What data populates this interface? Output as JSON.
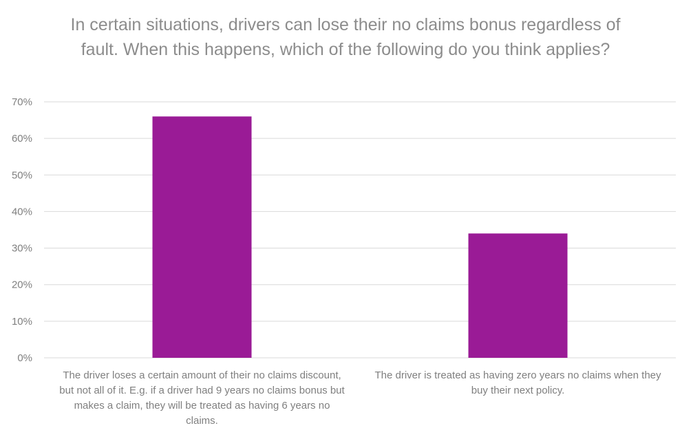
{
  "chart_data": {
    "type": "bar",
    "title": "In certain situations, drivers can lose their no claims bonus regardless of fault. When this happens, which of the following do you think applies?",
    "categories": [
      "The driver loses a certain amount of their no claims discount, but not all of it. E.g. if a driver had 9 years no claims bonus but makes a claim, they will be treated as having 6 years no claims.",
      "The driver is treated as having zero years no claims when they buy their next policy."
    ],
    "values": [
      66,
      34
    ],
    "ylim": [
      0,
      70
    ],
    "yticks": [
      "0%",
      "10%",
      "20%",
      "30%",
      "40%",
      "50%",
      "60%",
      "70%"
    ],
    "grid": true,
    "legend": "none",
    "bar_color": "#9a1b96",
    "grid_color": "#d9d9d9",
    "text_color": "#7f7f7f",
    "title_color": "#8c8c8c"
  }
}
